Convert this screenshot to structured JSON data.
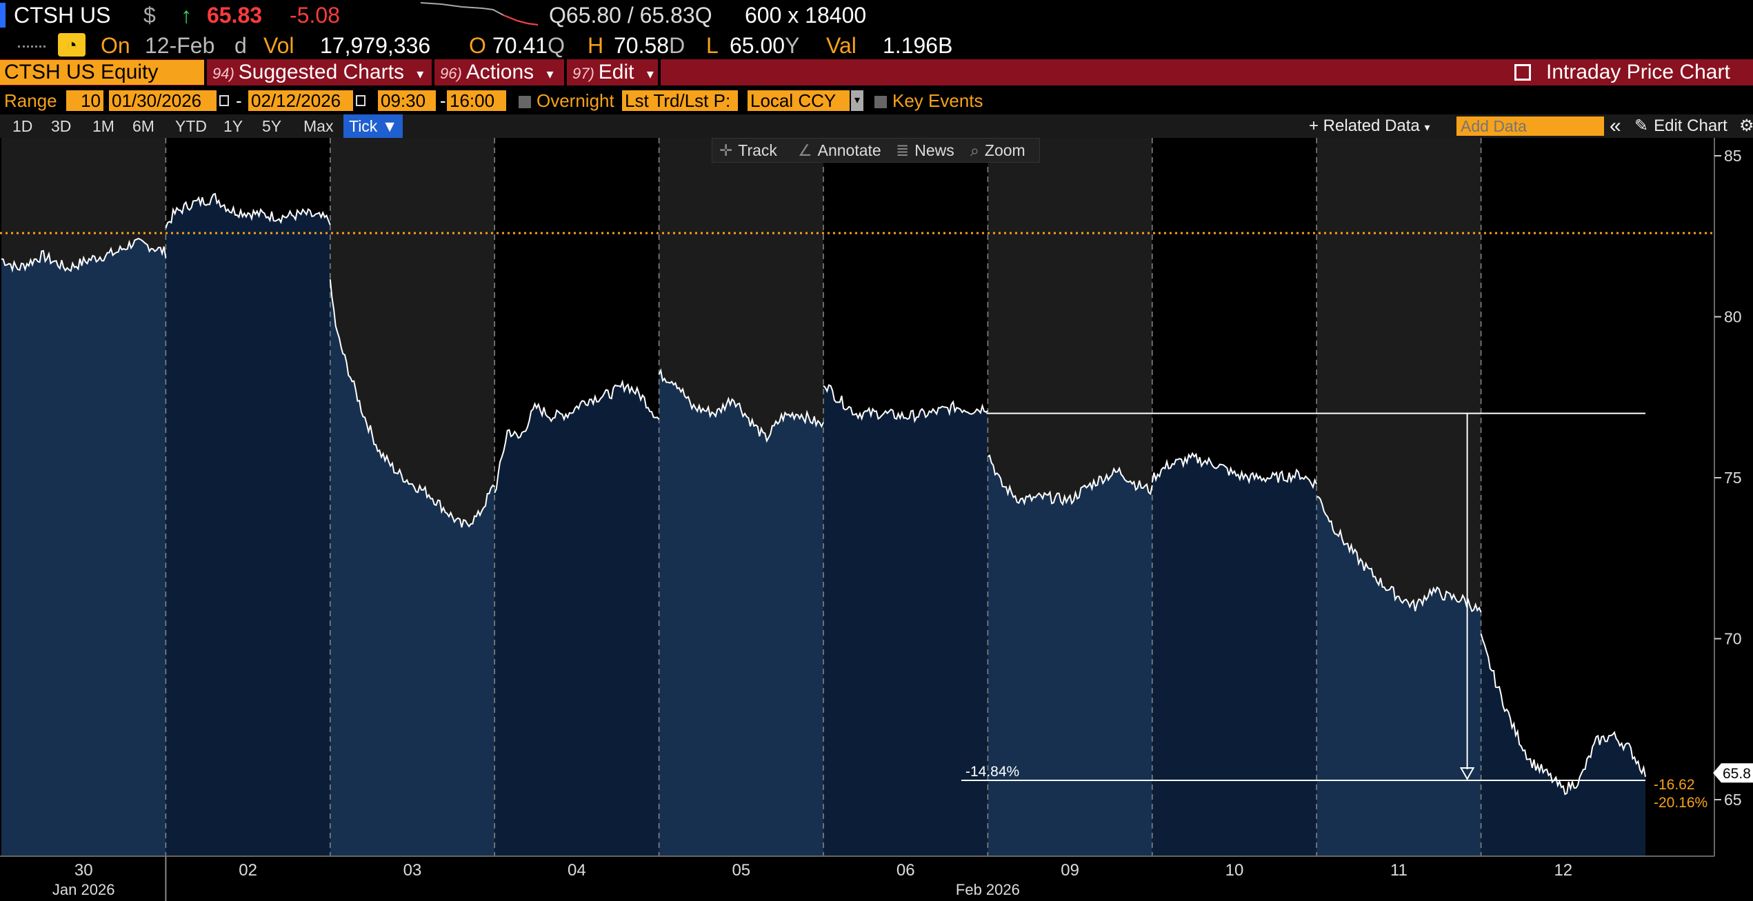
{
  "quote": {
    "ticker": "CTSH US",
    "currency_symbol": "$",
    "arrow": "↑",
    "last": "65.83",
    "change": "-5.08",
    "bid_ask_prefix": "Q",
    "bid": "65.80",
    "ask": "65.83",
    "ask_suffix": "Q",
    "size": "600 x 18400",
    "on_label": "On",
    "date": "12-Feb",
    "date_suffix": "d",
    "vol_label": "Vol",
    "volume": "17,979,336",
    "open_label": "O",
    "open": "70.41",
    "open_suffix": "Q",
    "high_label": "H",
    "high": "70.58",
    "high_suffix": "D",
    "low_label": "L",
    "low": "65.00",
    "low_suffix": "Y",
    "val_label": "Val",
    "value": "1.196B"
  },
  "menubar": {
    "security": "CTSH US Equity",
    "suggested_num": "94)",
    "suggested": "Suggested Charts",
    "actions_num": "96)",
    "actions": "Actions",
    "edit_num": "97)",
    "edit": "Edit",
    "chart_title": "Intraday Price Chart",
    "caret": "▾"
  },
  "rangebar": {
    "range_label": "Range",
    "range_value": "10",
    "start_date": "01/30/2026",
    "end_date": "02/12/2026",
    "dash": "-",
    "start_time": "09:30",
    "end_time": "16:00",
    "overnight": "Overnight",
    "price_type": "Lst Trd/Lst P:",
    "currency": "Local CCY",
    "key_events": "Key Events"
  },
  "periods": [
    "1D",
    "3D",
    "1M",
    "6M",
    "YTD",
    "1Y",
    "5Y",
    "Max"
  ],
  "period_active": "Tick ▼",
  "chart_menu": {
    "related_data": "+ Related Data",
    "add_data_placeholder": "Add Data",
    "collapse": "«",
    "edit_chart": "Edit Chart"
  },
  "tools": {
    "track": "Track",
    "annotate": "Annotate",
    "news": "News",
    "zoom": "Zoom"
  },
  "colors": {
    "orange": "#f7a21b",
    "red_bar": "#8a1120",
    "up_green": "#2ee06a",
    "down_red": "#ff3b3b",
    "area_light": "#17304f",
    "area_dark": "#0c1e37",
    "pre_light": "#1c1c1c"
  },
  "chart_data": {
    "type": "line",
    "ylim": [
      63,
      86
    ],
    "yticks": [
      65,
      70,
      75,
      80,
      85
    ],
    "reference_line": 82.6,
    "days": [
      {
        "label": "30",
        "light": true,
        "points": [
          [
            0,
            81.8
          ],
          [
            0.1,
            81.5
          ],
          [
            0.25,
            81.9
          ],
          [
            0.4,
            81.5
          ],
          [
            0.55,
            81.8
          ],
          [
            0.7,
            82.0
          ],
          [
            0.8,
            82.3
          ],
          [
            0.9,
            82.2
          ],
          [
            1,
            82.0
          ]
        ]
      },
      {
        "label": "02",
        "light": false,
        "points": [
          [
            0,
            82.8
          ],
          [
            0.05,
            83.2
          ],
          [
            0.15,
            83.5
          ],
          [
            0.3,
            83.7
          ],
          [
            0.4,
            83.3
          ],
          [
            0.55,
            83.2
          ],
          [
            0.7,
            83.1
          ],
          [
            0.85,
            83.2
          ],
          [
            1,
            83.0
          ]
        ]
      },
      {
        "label": "03",
        "light": true,
        "points": [
          [
            0,
            81.0
          ],
          [
            0.04,
            79.5
          ],
          [
            0.1,
            78.5
          ],
          [
            0.2,
            77.0
          ],
          [
            0.3,
            75.8
          ],
          [
            0.4,
            75.2
          ],
          [
            0.5,
            74.8
          ],
          [
            0.6,
            74.5
          ],
          [
            0.7,
            74.0
          ],
          [
            0.8,
            73.5
          ],
          [
            0.9,
            73.8
          ],
          [
            1,
            74.8
          ]
        ]
      },
      {
        "label": "04",
        "light": false,
        "points": [
          [
            0,
            74.5
          ],
          [
            0.08,
            76.5
          ],
          [
            0.15,
            76.2
          ],
          [
            0.25,
            77.2
          ],
          [
            0.35,
            76.9
          ],
          [
            0.45,
            77.0
          ],
          [
            0.55,
            77.4
          ],
          [
            0.7,
            77.6
          ],
          [
            0.8,
            77.9
          ],
          [
            0.9,
            77.5
          ],
          [
            1,
            76.8
          ]
        ]
      },
      {
        "label": "05",
        "light": true,
        "points": [
          [
            0,
            78.2
          ],
          [
            0.1,
            78.0
          ],
          [
            0.2,
            77.2
          ],
          [
            0.35,
            77.0
          ],
          [
            0.45,
            77.5
          ],
          [
            0.55,
            76.8
          ],
          [
            0.65,
            76.2
          ],
          [
            0.75,
            76.9
          ],
          [
            0.85,
            77.0
          ],
          [
            1,
            76.6
          ]
        ]
      },
      {
        "label": "06",
        "light": false,
        "points": [
          [
            0,
            78.0
          ],
          [
            0.08,
            77.5
          ],
          [
            0.2,
            77.0
          ],
          [
            0.35,
            77.0
          ],
          [
            0.5,
            76.9
          ],
          [
            0.65,
            77.0
          ],
          [
            0.8,
            77.2
          ],
          [
            0.9,
            77.1
          ],
          [
            1,
            77.2
          ]
        ]
      },
      {
        "label": "09",
        "light": true,
        "points": [
          [
            0,
            75.8
          ],
          [
            0.08,
            74.8
          ],
          [
            0.2,
            74.3
          ],
          [
            0.35,
            74.4
          ],
          [
            0.5,
            74.3
          ],
          [
            0.6,
            74.7
          ],
          [
            0.7,
            75.0
          ],
          [
            0.8,
            75.2
          ],
          [
            0.9,
            74.8
          ],
          [
            1,
            74.6
          ]
        ]
      },
      {
        "label": "10",
        "light": false,
        "points": [
          [
            0,
            75.0
          ],
          [
            0.1,
            75.4
          ],
          [
            0.25,
            75.6
          ],
          [
            0.4,
            75.4
          ],
          [
            0.5,
            75.1
          ],
          [
            0.6,
            75.0
          ],
          [
            0.75,
            75.0
          ],
          [
            0.9,
            75.1
          ],
          [
            1,
            74.8
          ]
        ]
      },
      {
        "label": "11",
        "light": true,
        "points": [
          [
            0,
            74.5
          ],
          [
            0.1,
            73.5
          ],
          [
            0.2,
            72.8
          ],
          [
            0.3,
            72.2
          ],
          [
            0.4,
            71.7
          ],
          [
            0.5,
            71.3
          ],
          [
            0.6,
            71.0
          ],
          [
            0.7,
            71.5
          ],
          [
            0.8,
            71.3
          ],
          [
            0.9,
            71.2
          ],
          [
            1,
            70.8
          ]
        ]
      },
      {
        "label": "12",
        "light": false,
        "points": [
          [
            0,
            70.0
          ],
          [
            0.1,
            68.5
          ],
          [
            0.2,
            67.2
          ],
          [
            0.3,
            66.2
          ],
          [
            0.4,
            65.8
          ],
          [
            0.5,
            65.3
          ],
          [
            0.6,
            65.6
          ],
          [
            0.7,
            66.8
          ],
          [
            0.8,
            67.0
          ],
          [
            0.9,
            66.6
          ],
          [
            1,
            65.8
          ]
        ]
      }
    ],
    "x_axis_groups": [
      {
        "label": "Jan 2026",
        "under_day": 0
      },
      {
        "label": "Feb 2026",
        "under_day": 5
      }
    ],
    "measure": {
      "from_value": 77.0,
      "to_value": 65.6,
      "from_day": 6,
      "to_day": 9,
      "label": "-14.84%"
    },
    "last_price_tag": "65.8",
    "change_labels": [
      "-16.62",
      "-20.16%"
    ]
  }
}
